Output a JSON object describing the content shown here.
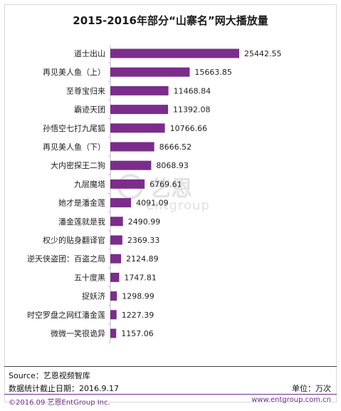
{
  "chart_data": {
    "type": "bar",
    "orientation": "horizontal",
    "title": "2015-2016年部分“山寨名”网大播放量",
    "categories": [
      "道士出山",
      "再见美人鱼（上）",
      "至尊宝归来",
      "霸迹天团",
      "孙悟空七打九尾狐",
      "再见美人鱼（下）",
      "大内密探王二狗",
      "九层魔塔",
      "她才是潘金莲",
      "潘金莲就是我",
      "权少的贴身翻译官",
      "逆天侠盗团：百盗之局",
      "五十度黑",
      "捉妖济",
      "时空罗盘之网红潘金莲",
      "微微一笑很诡异"
    ],
    "values": [
      25442.55,
      15663.85,
      11468.84,
      11392.08,
      10766.66,
      8666.52,
      8068.93,
      6769.61,
      4091.09,
      2490.99,
      2369.33,
      2124.89,
      1747.81,
      1298.99,
      1227.39,
      1157.06
    ],
    "value_labels": [
      "25442.55",
      "15663.85",
      "11468.84",
      "11392.08",
      "10766.66",
      "8666.52",
      "8068.93",
      "6769.61",
      "4091.09",
      "2490.99",
      "2369.33",
      "2124.89",
      "1747.81",
      "1298.99",
      "1227.39",
      "1157.06"
    ],
    "bar_color": "#7b2d8b",
    "grid": false,
    "legend": "none"
  },
  "watermark": {
    "cn": "艺恩",
    "en": "entgroup"
  },
  "footer": {
    "source": "Source：艺恩视频智库",
    "date": "数据统计截止日期：2016.9.17",
    "unit": "单位：万次",
    "copyright": "©2016.09  艺恩EntGroup Inc.",
    "website": "www.entgroup.com.cn"
  }
}
